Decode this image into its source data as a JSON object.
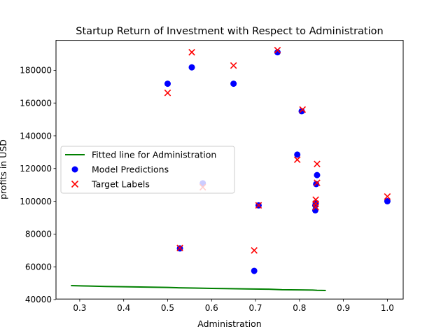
{
  "chart_data": {
    "type": "scatter",
    "title": "Startup Return of Investment with Respect to Administration",
    "xlabel": "Administration",
    "ylabel": "profits in USD",
    "xlim": [
      0.246,
      1.036
    ],
    "ylim": [
      40300,
      198300
    ],
    "xticks": [
      0.3,
      0.4,
      0.5,
      0.6,
      0.7,
      0.8,
      0.9,
      1.0
    ],
    "xtick_labels": [
      "0.3",
      "0.4",
      "0.5",
      "0.6",
      "0.7",
      "0.8",
      "0.9",
      "1.0"
    ],
    "yticks": [
      40000,
      60000,
      80000,
      100000,
      120000,
      140000,
      160000,
      180000
    ],
    "ytick_labels": [
      "40000",
      "60000",
      "80000",
      "100000",
      "120000",
      "140000",
      "160000",
      "180000"
    ],
    "grid": false,
    "legend_position": "center-left",
    "series": [
      {
        "name": "Fitted line for Administration",
        "kind": "line",
        "color": "#008000",
        "x": [
          0.28,
          0.31,
          0.36,
          0.4,
          0.45,
          0.5,
          0.52,
          0.56,
          0.6,
          0.63,
          0.68,
          0.73,
          0.76,
          0.8,
          0.83,
          0.84,
          0.86
        ],
        "y": [
          48500,
          48300,
          48000,
          47800,
          47600,
          47400,
          47200,
          47000,
          46800,
          46700,
          46500,
          46300,
          46000,
          45900,
          45800,
          45600,
          45500
        ]
      },
      {
        "name": "Model Predictions",
        "kind": "scatter",
        "marker": "circle",
        "color": "#0000ff",
        "x": [
          0.5,
          0.555,
          0.65,
          0.75,
          0.805,
          0.795,
          0.84,
          0.838,
          0.58,
          0.707,
          0.837,
          0.836,
          0.836,
          0.528,
          0.697,
          1.0
        ],
        "y": [
          171800,
          181800,
          171800,
          191000,
          155000,
          128500,
          116000,
          110500,
          111000,
          97500,
          99000,
          97500,
          94500,
          71200,
          57500,
          100000
        ]
      },
      {
        "name": "Target Labels",
        "kind": "scatter",
        "marker": "x",
        "color": "#ff0000",
        "x": [
          0.555,
          0.75,
          0.65,
          0.5,
          0.807,
          0.795,
          0.84,
          0.84,
          0.58,
          0.707,
          0.837,
          0.837,
          0.837,
          0.528,
          0.697,
          1.0
        ],
        "y": [
          191000,
          192300,
          182900,
          166200,
          156000,
          125400,
          122800,
          111300,
          108600,
          97500,
          101000,
          98500,
          96500,
          71500,
          70000,
          102900
        ]
      }
    ]
  }
}
